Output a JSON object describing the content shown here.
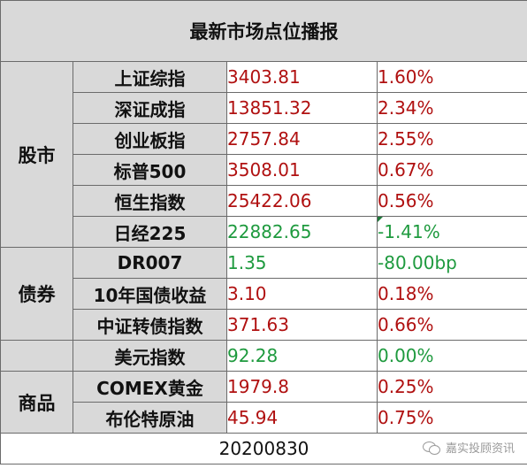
{
  "title": "最新市场点位播报",
  "groups": {
    "stocks": "股市",
    "bonds": "债券",
    "commodities": "商品"
  },
  "rows": [
    {
      "name": "上证综指",
      "value": "3403.81",
      "change": "1.60%",
      "value_color": "red",
      "change_color": "red"
    },
    {
      "name": "深证成指",
      "value": "13851.32",
      "change": "2.34%",
      "value_color": "red",
      "change_color": "red"
    },
    {
      "name": "创业板指",
      "value": "2757.84",
      "change": "2.55%",
      "value_color": "red",
      "change_color": "red"
    },
    {
      "name": "标普500",
      "value": "3508.01",
      "change": "0.67%",
      "value_color": "red",
      "change_color": "red"
    },
    {
      "name": "恒生指数",
      "value": "25422.06",
      "change": "0.56%",
      "value_color": "red",
      "change_color": "red"
    },
    {
      "name": "日经225",
      "value": "22882.65",
      "change": "-1.41%",
      "value_color": "green",
      "change_color": "green"
    },
    {
      "name": "DR007",
      "value": "1.35",
      "change": "-80.00bp",
      "value_color": "green",
      "change_color": "green"
    },
    {
      "name": "10年国债收益",
      "value": "3.10",
      "change": "0.18%",
      "value_color": "red",
      "change_color": "red"
    },
    {
      "name": "中证转债指数",
      "value": "371.63",
      "change": "0.66%",
      "value_color": "red",
      "change_color": "red"
    },
    {
      "name": "美元指数",
      "value": "92.28",
      "change": "0.00%",
      "value_color": "green",
      "change_color": "green"
    },
    {
      "name": "COMEX黄金",
      "value": "1979.8",
      "change": "0.25%",
      "value_color": "red",
      "change_color": "red"
    },
    {
      "name": "布伦特原油",
      "value": "45.94",
      "change": "0.75%",
      "value_color": "red",
      "change_color": "red"
    }
  ],
  "date": "20200830",
  "watermark": {
    "text": "嘉实投顾资讯",
    "icon": "wechat-icon"
  },
  "colors": {
    "header_bg": "#d9d9d9",
    "up": "#b01010",
    "down": "#1e9a3e",
    "border": "#6b6b6b"
  }
}
